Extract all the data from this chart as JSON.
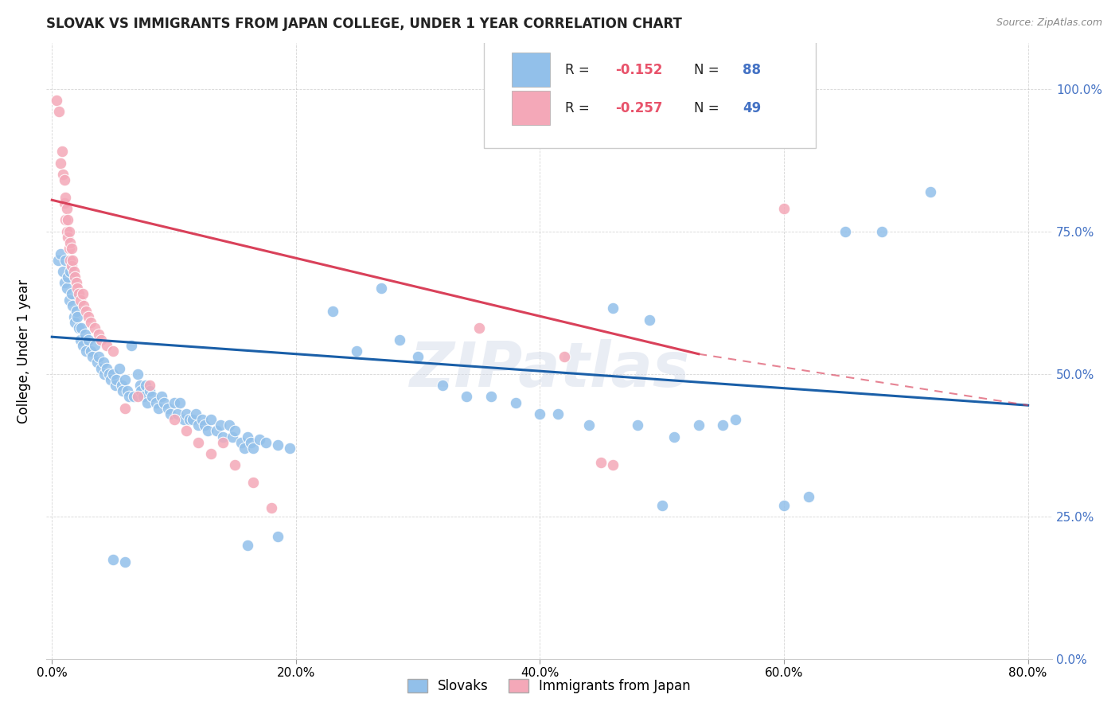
{
  "title": "SLOVAK VS IMMIGRANTS FROM JAPAN COLLEGE, UNDER 1 YEAR CORRELATION CHART",
  "source": "Source: ZipAtlas.com",
  "ylabel": "College, Under 1 year",
  "xlabel_ticks": [
    "0.0%",
    "20.0%",
    "40.0%",
    "60.0%",
    "80.0%"
  ],
  "xlabel_tick_vals": [
    0.0,
    0.2,
    0.4,
    0.6,
    0.8
  ],
  "ylabel_ticks": [
    "0.0%",
    "25.0%",
    "50.0%",
    "75.0%",
    "100.0%"
  ],
  "ylabel_tick_vals": [
    0.0,
    0.25,
    0.5,
    0.75,
    1.0
  ],
  "xlim": [
    -0.005,
    0.82
  ],
  "ylim": [
    0.0,
    1.08
  ],
  "legend_labels": [
    "Slovaks",
    "Immigrants from Japan"
  ],
  "blue_color": "#92C0EA",
  "pink_color": "#F4A8B8",
  "blue_line_color": "#1A5FA8",
  "pink_line_color": "#D9415A",
  "watermark": "ZIPatlas",
  "right_tick_color": "#4472C4",
  "blue_trend": [
    0.0,
    0.565,
    0.8,
    0.445
  ],
  "pink_trend_solid": [
    0.0,
    0.805,
    0.53,
    0.535
  ],
  "pink_trend_dash": [
    0.53,
    0.535,
    0.8,
    0.445
  ],
  "blue_scatter": [
    [
      0.005,
      0.7
    ],
    [
      0.007,
      0.71
    ],
    [
      0.009,
      0.68
    ],
    [
      0.01,
      0.66
    ],
    [
      0.011,
      0.7
    ],
    [
      0.012,
      0.65
    ],
    [
      0.013,
      0.67
    ],
    [
      0.014,
      0.63
    ],
    [
      0.015,
      0.68
    ],
    [
      0.016,
      0.64
    ],
    [
      0.017,
      0.62
    ],
    [
      0.018,
      0.6
    ],
    [
      0.019,
      0.59
    ],
    [
      0.02,
      0.61
    ],
    [
      0.021,
      0.6
    ],
    [
      0.022,
      0.58
    ],
    [
      0.023,
      0.56
    ],
    [
      0.024,
      0.58
    ],
    [
      0.025,
      0.55
    ],
    [
      0.027,
      0.57
    ],
    [
      0.028,
      0.54
    ],
    [
      0.03,
      0.56
    ],
    [
      0.032,
      0.54
    ],
    [
      0.033,
      0.53
    ],
    [
      0.035,
      0.55
    ],
    [
      0.037,
      0.52
    ],
    [
      0.038,
      0.53
    ],
    [
      0.04,
      0.51
    ],
    [
      0.042,
      0.52
    ],
    [
      0.043,
      0.5
    ],
    [
      0.045,
      0.51
    ],
    [
      0.047,
      0.5
    ],
    [
      0.048,
      0.49
    ],
    [
      0.05,
      0.5
    ],
    [
      0.052,
      0.48
    ],
    [
      0.053,
      0.49
    ],
    [
      0.055,
      0.51
    ],
    [
      0.057,
      0.48
    ],
    [
      0.058,
      0.47
    ],
    [
      0.06,
      0.49
    ],
    [
      0.062,
      0.47
    ],
    [
      0.063,
      0.46
    ],
    [
      0.065,
      0.55
    ],
    [
      0.067,
      0.46
    ],
    [
      0.07,
      0.5
    ],
    [
      0.072,
      0.48
    ],
    [
      0.073,
      0.47
    ],
    [
      0.075,
      0.46
    ],
    [
      0.077,
      0.48
    ],
    [
      0.078,
      0.45
    ],
    [
      0.08,
      0.47
    ],
    [
      0.082,
      0.46
    ],
    [
      0.085,
      0.45
    ],
    [
      0.087,
      0.44
    ],
    [
      0.09,
      0.46
    ],
    [
      0.092,
      0.45
    ],
    [
      0.095,
      0.44
    ],
    [
      0.097,
      0.43
    ],
    [
      0.1,
      0.45
    ],
    [
      0.103,
      0.43
    ],
    [
      0.105,
      0.45
    ],
    [
      0.108,
      0.42
    ],
    [
      0.11,
      0.43
    ],
    [
      0.113,
      0.42
    ],
    [
      0.115,
      0.42
    ],
    [
      0.118,
      0.43
    ],
    [
      0.12,
      0.41
    ],
    [
      0.123,
      0.42
    ],
    [
      0.125,
      0.41
    ],
    [
      0.128,
      0.4
    ],
    [
      0.13,
      0.42
    ],
    [
      0.135,
      0.4
    ],
    [
      0.138,
      0.41
    ],
    [
      0.14,
      0.39
    ],
    [
      0.145,
      0.41
    ],
    [
      0.148,
      0.39
    ],
    [
      0.15,
      0.4
    ],
    [
      0.155,
      0.38
    ],
    [
      0.158,
      0.37
    ],
    [
      0.16,
      0.39
    ],
    [
      0.163,
      0.38
    ],
    [
      0.165,
      0.37
    ],
    [
      0.17,
      0.385
    ],
    [
      0.175,
      0.38
    ],
    [
      0.185,
      0.375
    ],
    [
      0.195,
      0.37
    ],
    [
      0.23,
      0.61
    ],
    [
      0.25,
      0.54
    ],
    [
      0.27,
      0.65
    ],
    [
      0.285,
      0.56
    ],
    [
      0.3,
      0.53
    ],
    [
      0.32,
      0.48
    ],
    [
      0.34,
      0.46
    ],
    [
      0.36,
      0.46
    ],
    [
      0.38,
      0.45
    ],
    [
      0.4,
      0.43
    ],
    [
      0.415,
      0.43
    ],
    [
      0.44,
      0.41
    ],
    [
      0.46,
      0.615
    ],
    [
      0.49,
      0.595
    ],
    [
      0.48,
      0.41
    ],
    [
      0.5,
      0.27
    ],
    [
      0.51,
      0.39
    ],
    [
      0.53,
      0.41
    ],
    [
      0.55,
      0.41
    ],
    [
      0.56,
      0.42
    ],
    [
      0.6,
      0.27
    ],
    [
      0.62,
      0.285
    ],
    [
      0.65,
      0.75
    ],
    [
      0.68,
      0.75
    ],
    [
      0.72,
      0.82
    ],
    [
      0.05,
      0.175
    ],
    [
      0.06,
      0.17
    ],
    [
      0.16,
      0.2
    ],
    [
      0.185,
      0.215
    ]
  ],
  "pink_scatter": [
    [
      0.004,
      0.98
    ],
    [
      0.006,
      0.96
    ],
    [
      0.007,
      0.87
    ],
    [
      0.008,
      0.89
    ],
    [
      0.009,
      0.85
    ],
    [
      0.01,
      0.84
    ],
    [
      0.01,
      0.8
    ],
    [
      0.011,
      0.81
    ],
    [
      0.011,
      0.77
    ],
    [
      0.012,
      0.79
    ],
    [
      0.012,
      0.75
    ],
    [
      0.013,
      0.77
    ],
    [
      0.013,
      0.74
    ],
    [
      0.014,
      0.75
    ],
    [
      0.014,
      0.72
    ],
    [
      0.015,
      0.73
    ],
    [
      0.015,
      0.7
    ],
    [
      0.016,
      0.72
    ],
    [
      0.016,
      0.69
    ],
    [
      0.017,
      0.7
    ],
    [
      0.018,
      0.68
    ],
    [
      0.019,
      0.67
    ],
    [
      0.02,
      0.66
    ],
    [
      0.021,
      0.65
    ],
    [
      0.022,
      0.64
    ],
    [
      0.023,
      0.63
    ],
    [
      0.025,
      0.64
    ],
    [
      0.026,
      0.62
    ],
    [
      0.028,
      0.61
    ],
    [
      0.03,
      0.6
    ],
    [
      0.032,
      0.59
    ],
    [
      0.035,
      0.58
    ],
    [
      0.038,
      0.57
    ],
    [
      0.04,
      0.56
    ],
    [
      0.045,
      0.55
    ],
    [
      0.05,
      0.54
    ],
    [
      0.06,
      0.44
    ],
    [
      0.07,
      0.46
    ],
    [
      0.08,
      0.48
    ],
    [
      0.1,
      0.42
    ],
    [
      0.11,
      0.4
    ],
    [
      0.12,
      0.38
    ],
    [
      0.13,
      0.36
    ],
    [
      0.14,
      0.38
    ],
    [
      0.15,
      0.34
    ],
    [
      0.165,
      0.31
    ],
    [
      0.18,
      0.265
    ],
    [
      0.35,
      0.58
    ],
    [
      0.42,
      0.53
    ],
    [
      0.45,
      0.345
    ],
    [
      0.46,
      0.34
    ],
    [
      0.6,
      0.79
    ]
  ]
}
